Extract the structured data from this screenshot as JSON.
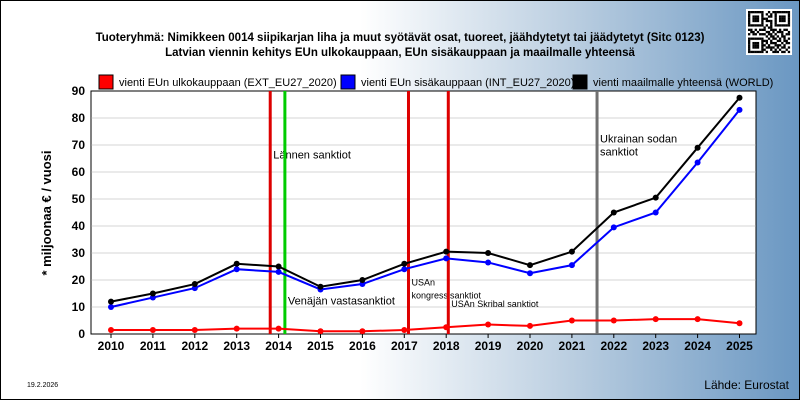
{
  "chart_data": {
    "type": "line",
    "title_line1": "Tuoteryhmä: Nimikkeen 0014 siipikarjan liha ja muut syötävät osat, tuoreet, jäähdytetyt tai jäädytetyt (Sitc 0123)",
    "title_line2": "Latvian viennin kehitys EUn ulkokauppaan, EUn sisäkauppaan ja maailmalle yhteensä",
    "ylabel": "* miljoonaa € / vuosi",
    "ylim": [
      0,
      90
    ],
    "yticks": [
      "0",
      "10",
      "20",
      "30",
      "40",
      "50",
      "60",
      "70",
      "80",
      "90"
    ],
    "categories": [
      "2010",
      "2011",
      "2012",
      "2013",
      "2014",
      "2015",
      "2016",
      "2017",
      "2018",
      "2019",
      "2020",
      "2021",
      "2022",
      "2023",
      "2024",
      "2025"
    ],
    "series": [
      {
        "name": "vienti EUn ulkokauppaan (EXT_EU27_2020)",
        "color": "#ff0000",
        "values": [
          1.5,
          1.5,
          1.5,
          2.0,
          2.0,
          1.0,
          1.0,
          1.5,
          2.5,
          3.5,
          3.0,
          5.0,
          5.0,
          5.5,
          5.5,
          4.0
        ]
      },
      {
        "name": "vienti EUn sisäkauppaan (INT_EU27_2020)",
        "color": "#0000ff",
        "values": [
          10.0,
          13.5,
          17.0,
          24.0,
          23.0,
          16.5,
          18.5,
          24.0,
          28.0,
          26.5,
          22.5,
          25.5,
          39.5,
          45.0,
          63.5,
          83.0
        ]
      },
      {
        "name": "vienti maailmalle yhteensä (WORLD)",
        "color": "#000000",
        "values": [
          12.0,
          15.0,
          18.5,
          26.0,
          25.0,
          17.5,
          20.0,
          26.0,
          30.5,
          30.0,
          25.5,
          30.5,
          45.0,
          50.5,
          69.0,
          87.5
        ]
      }
    ],
    "events": [
      {
        "x": 2013.8,
        "color": "#dd0000",
        "label": "Lännen sanktiot",
        "label_y": 65
      },
      {
        "x": 2014.15,
        "color": "#00cc00",
        "label": "Venäjän vastasanktiot",
        "label_y": 11
      },
      {
        "x": 2017.1,
        "color": "#dd0000",
        "label": "USAn",
        "label2": "kongressisanktiot",
        "label_y": 18
      },
      {
        "x": 2018.05,
        "color": "#dd0000",
        "label": "USAn Skribal sanktiot",
        "label_y": 10
      },
      {
        "x": 2021.6,
        "color": "#707070",
        "label": "Ukrainan sodan",
        "label2": "sanktiot",
        "label_y": 71
      }
    ],
    "grid": true,
    "legend": "top"
  },
  "footer": {
    "date": "19.2.2026",
    "source": "Lähde: Eurostat"
  },
  "qr": {
    "icon": "qr-code-icon"
  }
}
